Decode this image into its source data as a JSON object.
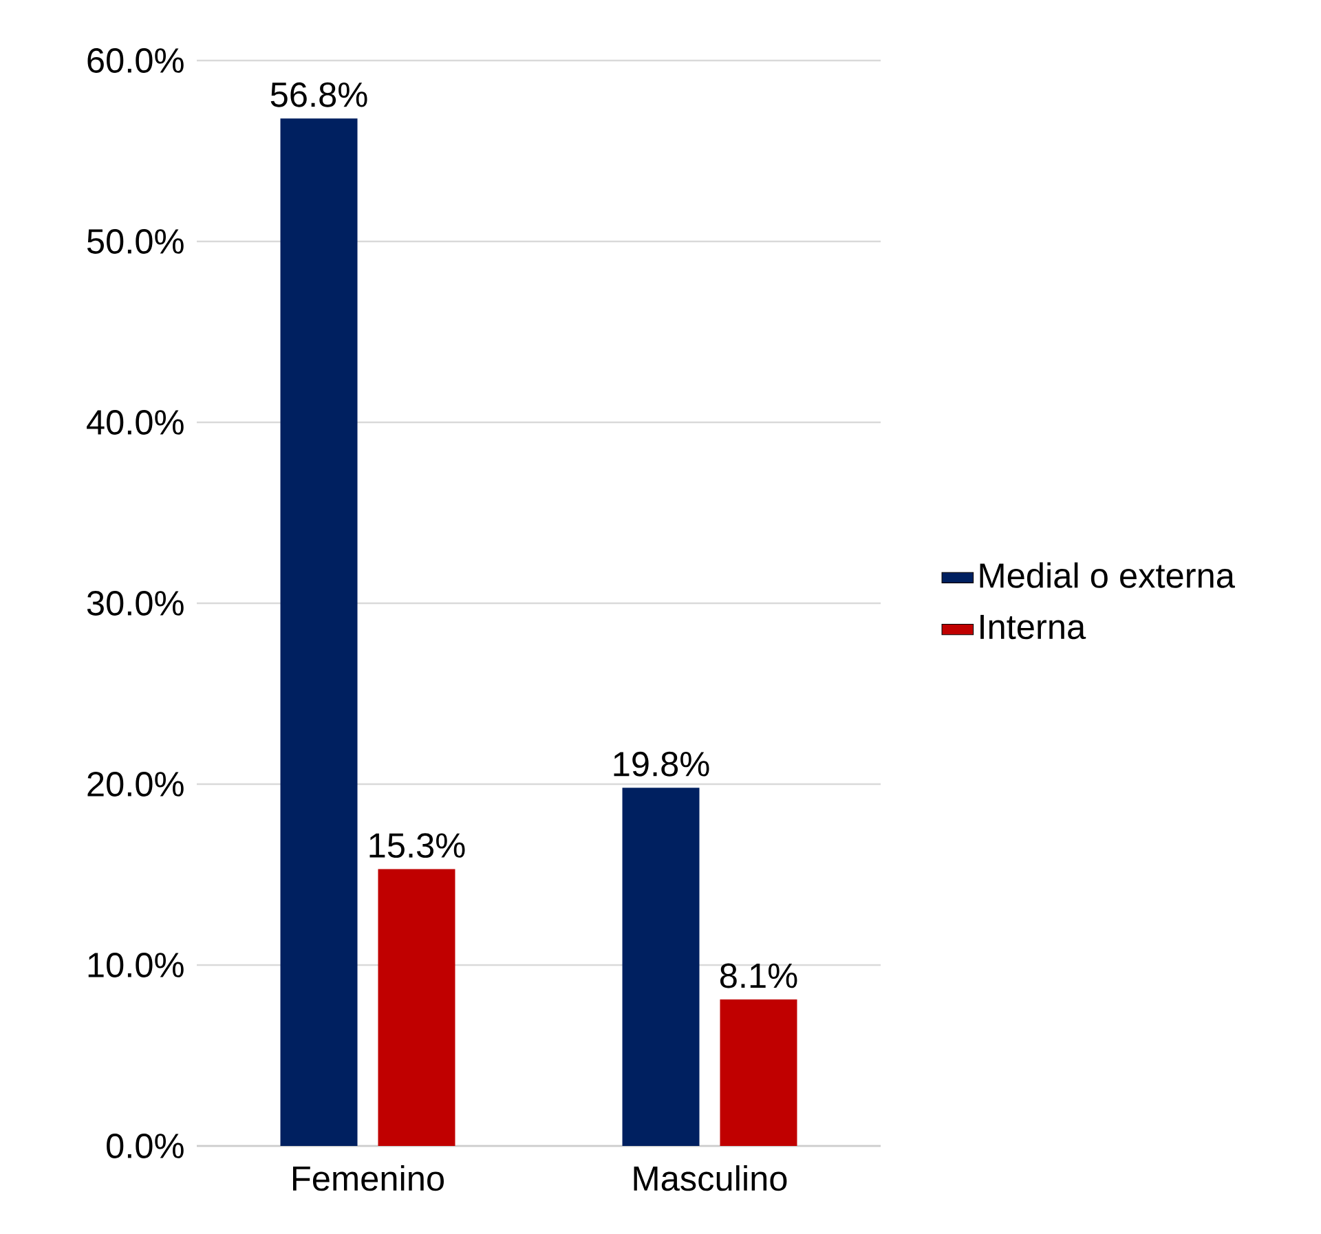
{
  "chart_data": {
    "type": "bar",
    "categories": [
      "Femenino",
      "Masculino"
    ],
    "series": [
      {
        "name": "Medial o externa",
        "color": "#002060",
        "values": [
          56.8,
          19.8
        ],
        "value_labels": [
          "56.8%",
          "19.8%"
        ]
      },
      {
        "name": "Interna",
        "color": "#c00000",
        "values": [
          15.3,
          8.1
        ],
        "value_labels": [
          "15.3%",
          "8.1%"
        ]
      }
    ],
    "ylim": [
      0,
      60
    ],
    "yticks": [
      {
        "value": 0,
        "label": "0.0%"
      },
      {
        "value": 10,
        "label": "10.0%"
      },
      {
        "value": 20,
        "label": "20.0%"
      },
      {
        "value": 30,
        "label": "30.0%"
      },
      {
        "value": 40,
        "label": "40.0%"
      },
      {
        "value": 50,
        "label": "50.0%"
      },
      {
        "value": 60,
        "label": "60.0%"
      }
    ],
    "grid": "y",
    "legend": "right"
  }
}
